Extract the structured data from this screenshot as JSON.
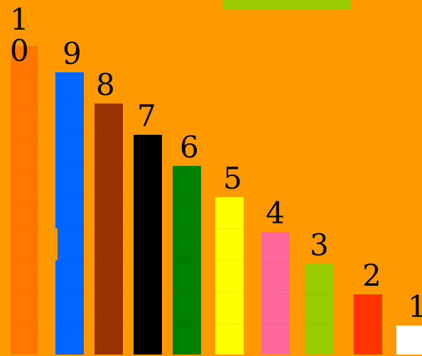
{
  "rods": [
    {
      "value": 10,
      "label": "1\n0",
      "color": "#FF7700"
    },
    {
      "value": 9,
      "label": "9",
      "color": "#0066FF"
    },
    {
      "value": 8,
      "label": "8",
      "color": "#993300"
    },
    {
      "value": 7,
      "label": "7",
      "color": "#000000"
    },
    {
      "value": 6,
      "label": "6",
      "color": "#008000"
    },
    {
      "value": 5,
      "label": "5",
      "color": "#FFFF00"
    },
    {
      "value": 4,
      "label": "4",
      "color": "#FF6699"
    },
    {
      "value": 3,
      "label": "3",
      "color": "#99CC00"
    },
    {
      "value": 2,
      "label": "2",
      "color": "#FF3300"
    },
    {
      "value": 1,
      "label": "1",
      "color": "#FFFFFF"
    }
  ],
  "held_rod": {
    "color": "#99CC00"
  },
  "background": "#FF9900"
}
